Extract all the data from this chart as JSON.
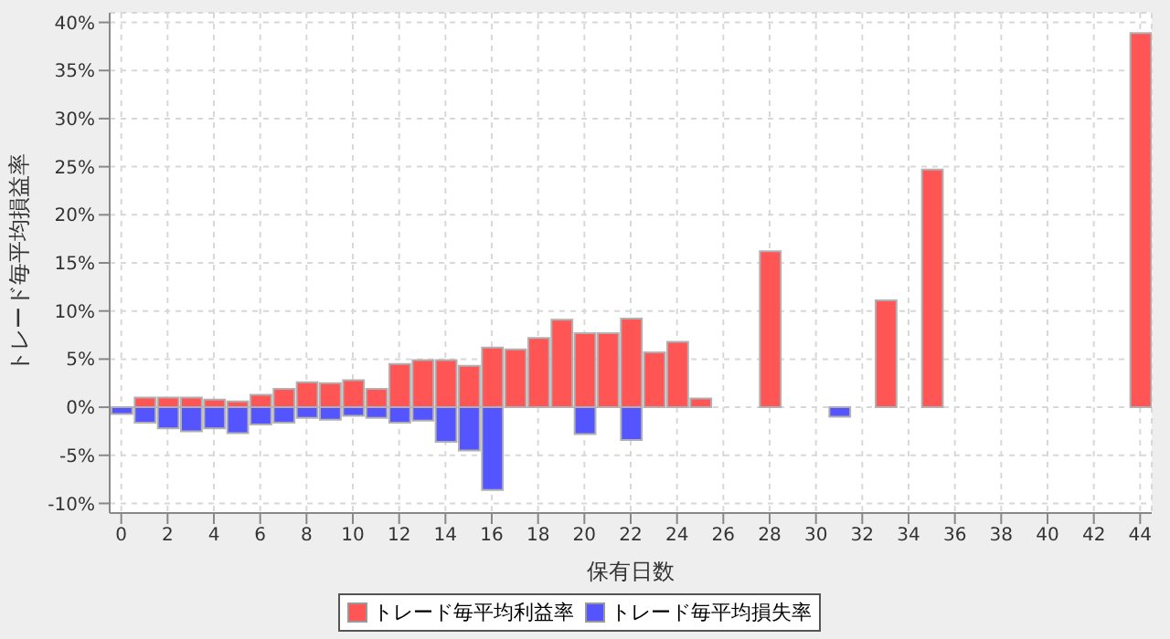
{
  "chart_data": {
    "type": "bar",
    "xlabel": "保有日数",
    "ylabel": "トレード毎平均損益率",
    "x": [
      0,
      1,
      2,
      3,
      4,
      5,
      6,
      7,
      8,
      9,
      10,
      11,
      12,
      13,
      14,
      15,
      16,
      17,
      18,
      19,
      20,
      21,
      22,
      23,
      24,
      25,
      26,
      27,
      28,
      29,
      30,
      31,
      32,
      33,
      34,
      35,
      36,
      37,
      38,
      39,
      40,
      41,
      42,
      43,
      44
    ],
    "series": [
      {
        "name": "トレード毎平均利益率",
        "color": "#ff5555",
        "values": [
          null,
          1.0,
          1.0,
          1.0,
          0.8,
          0.6,
          1.3,
          1.9,
          2.6,
          2.5,
          2.8,
          1.9,
          4.5,
          4.9,
          4.9,
          4.3,
          6.2,
          6.0,
          7.2,
          9.1,
          7.7,
          7.7,
          9.2,
          5.7,
          6.8,
          0.9,
          null,
          null,
          16.2,
          null,
          null,
          null,
          null,
          11.1,
          null,
          24.7,
          null,
          null,
          null,
          null,
          null,
          null,
          null,
          null,
          38.9
        ]
      },
      {
        "name": "トレード毎平均損失率",
        "color": "#5555ff",
        "values": [
          -0.7,
          -1.6,
          -2.2,
          -2.5,
          -2.2,
          -2.7,
          -1.8,
          -1.6,
          -1.1,
          -1.3,
          -0.9,
          -1.1,
          -1.6,
          -1.4,
          -3.6,
          -4.5,
          -8.6,
          null,
          null,
          null,
          -2.8,
          null,
          -3.4,
          null,
          null,
          null,
          null,
          null,
          null,
          null,
          null,
          -1.0,
          null,
          null,
          null,
          null,
          null,
          null,
          null,
          null,
          null,
          null,
          null,
          null,
          null
        ]
      }
    ],
    "xlim": [
      -0.5,
      44.5
    ],
    "xticks": [
      0,
      2,
      4,
      6,
      8,
      10,
      12,
      14,
      16,
      18,
      20,
      22,
      24,
      26,
      28,
      30,
      32,
      34,
      36,
      38,
      40,
      42,
      44
    ],
    "ylim": [
      -11,
      41
    ],
    "yticks": [
      {
        "value": -10,
        "label": "-10%"
      },
      {
        "value": -5,
        "label": "-5%"
      },
      {
        "value": 0,
        "label": "0%"
      },
      {
        "value": 5,
        "label": "5%"
      },
      {
        "value": 10,
        "label": "10%"
      },
      {
        "value": 15,
        "label": "15%"
      },
      {
        "value": 20,
        "label": "20%"
      },
      {
        "value": 25,
        "label": "25%"
      },
      {
        "value": 30,
        "label": "30%"
      },
      {
        "value": 35,
        "label": "35%"
      },
      {
        "value": 40,
        "label": "40%"
      }
    ],
    "grid": true,
    "legend": "bottom"
  }
}
